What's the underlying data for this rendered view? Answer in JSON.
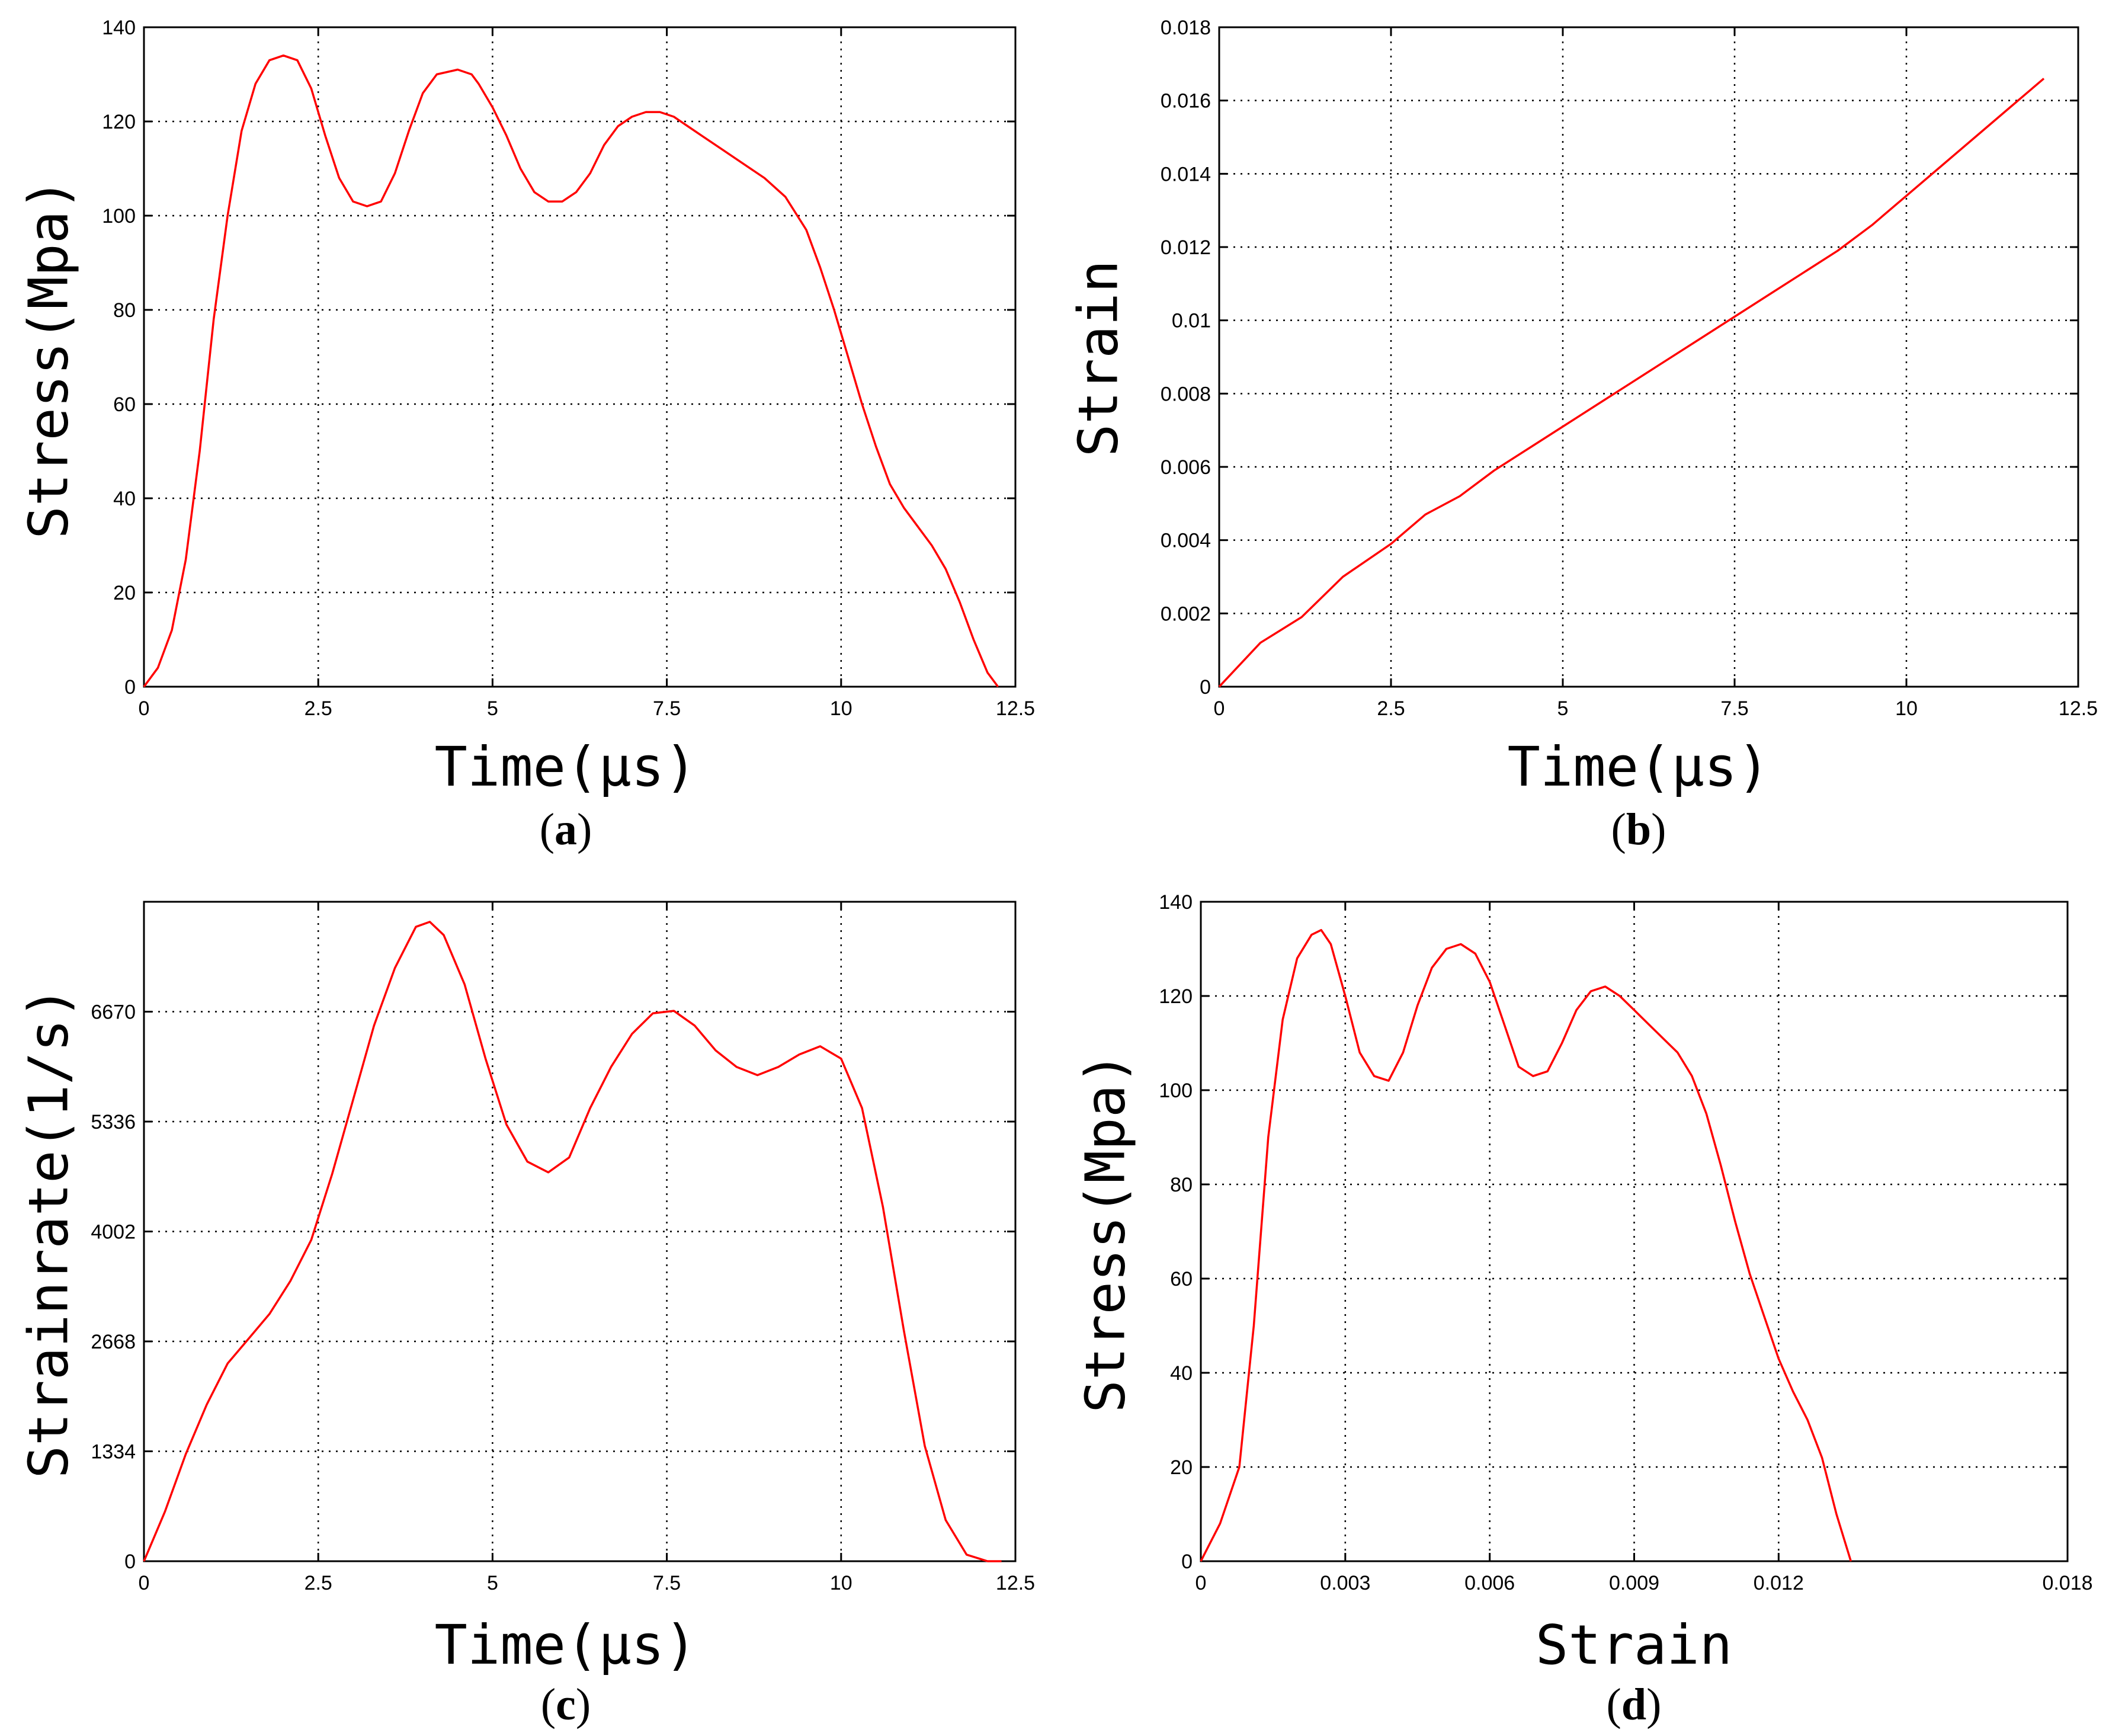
{
  "colors": {
    "series": "#ff0000",
    "axes": "#000000",
    "background": "#ffffff"
  },
  "chart_data": [
    {
      "id": "a",
      "type": "line",
      "caption": {
        "open": "(",
        "letter": "a",
        "close": ")"
      },
      "xlabel": "Time(μs)",
      "ylabel": "Stress(Mpa)",
      "xlim": [
        0,
        12.5
      ],
      "ylim": [
        0,
        140
      ],
      "xticks": [
        0,
        2.5,
        5,
        7.5,
        10,
        12.5
      ],
      "xtick_labels": [
        "0",
        "2.5",
        "5",
        "7.5",
        "10",
        "12.5"
      ],
      "yticks": [
        0,
        20,
        40,
        60,
        80,
        100,
        120,
        140
      ],
      "ytick_labels": [
        "0",
        "20",
        "40",
        "60",
        "80",
        "100",
        "120",
        "140"
      ],
      "grid": true,
      "series": [
        {
          "x": [
            0,
            0.2,
            0.4,
            0.6,
            0.8,
            1.0,
            1.2,
            1.4,
            1.6,
            1.8,
            2.0,
            2.2,
            2.4,
            2.6,
            2.8,
            3.0,
            3.2,
            3.4,
            3.6,
            3.8,
            4.0,
            4.2,
            4.5,
            4.7,
            4.8,
            5.0,
            5.2,
            5.4,
            5.6,
            5.8,
            6.0,
            6.2,
            6.4,
            6.6,
            6.8,
            7.0,
            7.2,
            7.4,
            7.6,
            7.8,
            8.0,
            8.3,
            8.6,
            8.9,
            9.2,
            9.5,
            9.7,
            9.9,
            10.1,
            10.3,
            10.5,
            10.7,
            10.9,
            11.1,
            11.3,
            11.5,
            11.7,
            11.9,
            12.1,
            12.25
          ],
          "y": [
            0,
            4,
            12,
            27,
            50,
            78,
            100,
            118,
            128,
            133,
            134,
            133,
            127,
            117,
            108,
            103,
            102,
            103,
            109,
            118,
            126,
            130,
            131,
            130,
            128,
            123,
            117,
            110,
            105,
            103,
            103,
            105,
            109,
            115,
            119,
            121,
            122,
            122,
            121,
            119,
            117,
            114,
            111,
            108,
            104,
            97,
            89,
            80,
            70,
            60,
            51,
            43,
            38,
            34,
            30,
            25,
            18,
            10,
            3,
            0
          ]
        }
      ]
    },
    {
      "id": "b",
      "type": "line",
      "caption": {
        "open": "(",
        "letter": "b",
        "close": ")"
      },
      "xlabel": "Time(μs)",
      "ylabel": "Strain",
      "xlim": [
        0,
        12.5
      ],
      "ylim": [
        0,
        0.018
      ],
      "xticks": [
        0,
        2.5,
        5,
        7.5,
        10,
        12.5
      ],
      "xtick_labels": [
        "0",
        "2.5",
        "5",
        "7.5",
        "10",
        "12.5"
      ],
      "yticks": [
        0,
        0.002,
        0.004,
        0.006,
        0.008,
        0.01,
        0.012,
        0.014,
        0.016,
        0.018
      ],
      "ytick_labels": [
        "0",
        "0.002",
        "0.004",
        "0.006",
        "0.008",
        "0.01",
        "0.012",
        "0.014",
        "0.016",
        "0.018"
      ],
      "grid": true,
      "series": [
        {
          "x": [
            0,
            0.6,
            1.2,
            1.8,
            2.5,
            3.0,
            3.5,
            4.0,
            4.5,
            5.0,
            5.5,
            6.0,
            6.5,
            7.0,
            7.5,
            8.0,
            8.5,
            9.0,
            9.5,
            10.0,
            10.5,
            11.0,
            11.5,
            12.0
          ],
          "y": [
            0,
            0.0012,
            0.0019,
            0.003,
            0.0039,
            0.0047,
            0.0052,
            0.0059,
            0.0065,
            0.0071,
            0.0077,
            0.0083,
            0.0089,
            0.0095,
            0.0101,
            0.0107,
            0.0113,
            0.0119,
            0.0126,
            0.0134,
            0.0142,
            0.015,
            0.0158,
            0.0166
          ]
        }
      ]
    },
    {
      "id": "c",
      "type": "line",
      "caption": {
        "open": "(",
        "letter": "c",
        "close": ")"
      },
      "xlabel": "Time(μs)",
      "ylabel": "Strainrate(1/s)",
      "xlim": [
        0,
        12.5
      ],
      "ylim": [
        0,
        8004
      ],
      "xticks": [
        0,
        2.5,
        5,
        7.5,
        10,
        12.5
      ],
      "xtick_labels": [
        "0",
        "2.5",
        "5",
        "7.5",
        "10",
        "12.5"
      ],
      "yticks": [
        0,
        1334,
        2668,
        4002,
        5336,
        6670
      ],
      "ytick_labels": [
        "0",
        "1334",
        "2668",
        "4002",
        "5336",
        "6670"
      ],
      "grid": true,
      "series": [
        {
          "x": [
            0,
            0.3,
            0.6,
            0.9,
            1.2,
            1.5,
            1.8,
            2.1,
            2.4,
            2.7,
            3.0,
            3.3,
            3.6,
            3.9,
            4.1,
            4.3,
            4.6,
            4.9,
            5.2,
            5.5,
            5.8,
            6.1,
            6.4,
            6.7,
            7.0,
            7.3,
            7.6,
            7.9,
            8.2,
            8.5,
            8.8,
            9.1,
            9.4,
            9.7,
            10.0,
            10.3,
            10.6,
            10.9,
            11.2,
            11.5,
            11.8,
            12.1,
            12.3
          ],
          "y": [
            0,
            600,
            1300,
            1900,
            2400,
            2700,
            3000,
            3400,
            3900,
            4700,
            5600,
            6500,
            7200,
            7700,
            7760,
            7600,
            7000,
            6100,
            5300,
            4850,
            4720,
            4900,
            5500,
            6000,
            6400,
            6650,
            6680,
            6500,
            6200,
            6000,
            5900,
            6000,
            6150,
            6250,
            6100,
            5500,
            4300,
            2800,
            1400,
            500,
            80,
            0,
            0
          ]
        }
      ]
    },
    {
      "id": "d",
      "type": "line",
      "caption": {
        "open": "(",
        "letter": "d",
        "close": ")"
      },
      "xlabel": "Strain",
      "ylabel": "Stress(Mpa)",
      "xlim": [
        0,
        0.018
      ],
      "ylim": [
        0,
        140
      ],
      "xticks": [
        0,
        0.003,
        0.006,
        0.009,
        0.012,
        0.018
      ],
      "xtick_labels": [
        "0",
        "0.003",
        "0.006",
        "0.009",
        "0.012",
        "0.018"
      ],
      "yticks": [
        0,
        20,
        40,
        60,
        80,
        100,
        120,
        140
      ],
      "ytick_labels": [
        "0",
        "20",
        "40",
        "60",
        "80",
        "100",
        "120",
        "140"
      ],
      "grid": true,
      "series": [
        {
          "x": [
            0,
            0.0004,
            0.0008,
            0.0011,
            0.0014,
            0.0017,
            0.002,
            0.0023,
            0.0025,
            0.0027,
            0.003,
            0.0033,
            0.0036,
            0.0039,
            0.0042,
            0.0045,
            0.0048,
            0.0051,
            0.0054,
            0.0057,
            0.006,
            0.0063,
            0.0066,
            0.0069,
            0.0072,
            0.0075,
            0.0078,
            0.0081,
            0.0084,
            0.0087,
            0.009,
            0.0093,
            0.0096,
            0.0099,
            0.0102,
            0.0105,
            0.0108,
            0.0111,
            0.0114,
            0.0117,
            0.012,
            0.0123,
            0.0126,
            0.0129,
            0.0132,
            0.0135
          ],
          "y": [
            0,
            8,
            20,
            50,
            90,
            115,
            128,
            133,
            134,
            131,
            120,
            108,
            103,
            102,
            108,
            118,
            126,
            130,
            131,
            129,
            123,
            114,
            105,
            103,
            104,
            110,
            117,
            121,
            122,
            120,
            117,
            114,
            111,
            108,
            103,
            95,
            84,
            72,
            61,
            52,
            43,
            36,
            30,
            22,
            10,
            0
          ]
        }
      ]
    }
  ]
}
